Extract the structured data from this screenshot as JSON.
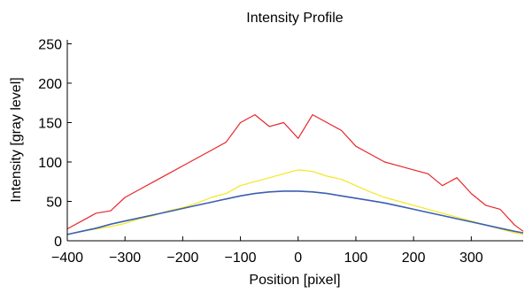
{
  "chart_data": {
    "type": "line",
    "title": "Intensity Profile",
    "xlabel": "Position [pixel]",
    "ylabel": "Intensity [gray level]",
    "xlim": [
      -400,
      390
    ],
    "ylim": [
      0,
      255
    ],
    "x_ticks": [
      -400,
      -300,
      -200,
      -100,
      0,
      100,
      200,
      300
    ],
    "y_ticks": [
      0,
      50,
      100,
      150,
      200,
      250
    ],
    "x_tick_labels": [
      "−400",
      "−300",
      "−200",
      "−100",
      "0",
      "100",
      "200",
      "300"
    ],
    "y_tick_labels": [
      "0",
      "50",
      "100",
      "150",
      "200",
      "250"
    ],
    "grid": false,
    "x": [
      -400,
      -375,
      -350,
      -325,
      -300,
      -275,
      -250,
      -225,
      -200,
      -175,
      -150,
      -125,
      -100,
      -75,
      -50,
      -25,
      0,
      25,
      50,
      75,
      100,
      125,
      150,
      175,
      200,
      225,
      250,
      275,
      300,
      325,
      350,
      375,
      390
    ],
    "series": [
      {
        "color": "#e8262a",
        "values": [
          15,
          25,
          35,
          38,
          55,
          65,
          75,
          85,
          95,
          105,
          115,
          125,
          150,
          160,
          145,
          150,
          130,
          160,
          150,
          140,
          120,
          110,
          100,
          95,
          90,
          85,
          70,
          80,
          60,
          45,
          40,
          20,
          12
        ]
      },
      {
        "color": "#f2e81f",
        "values": [
          8,
          12,
          15,
          18,
          22,
          28,
          32,
          38,
          42,
          48,
          55,
          60,
          70,
          75,
          80,
          85,
          90,
          88,
          82,
          78,
          70,
          62,
          55,
          50,
          45,
          40,
          35,
          30,
          25,
          20,
          15,
          10,
          8
        ]
      },
      {
        "color": "#3b5fb0",
        "values": [
          8,
          12,
          16,
          21,
          25,
          29,
          33,
          37,
          41,
          45,
          49,
          53,
          57,
          60,
          62,
          63,
          63,
          62,
          60,
          57,
          54,
          51,
          48,
          44,
          40,
          36,
          32,
          28,
          24,
          20,
          16,
          12,
          10
        ]
      }
    ]
  }
}
